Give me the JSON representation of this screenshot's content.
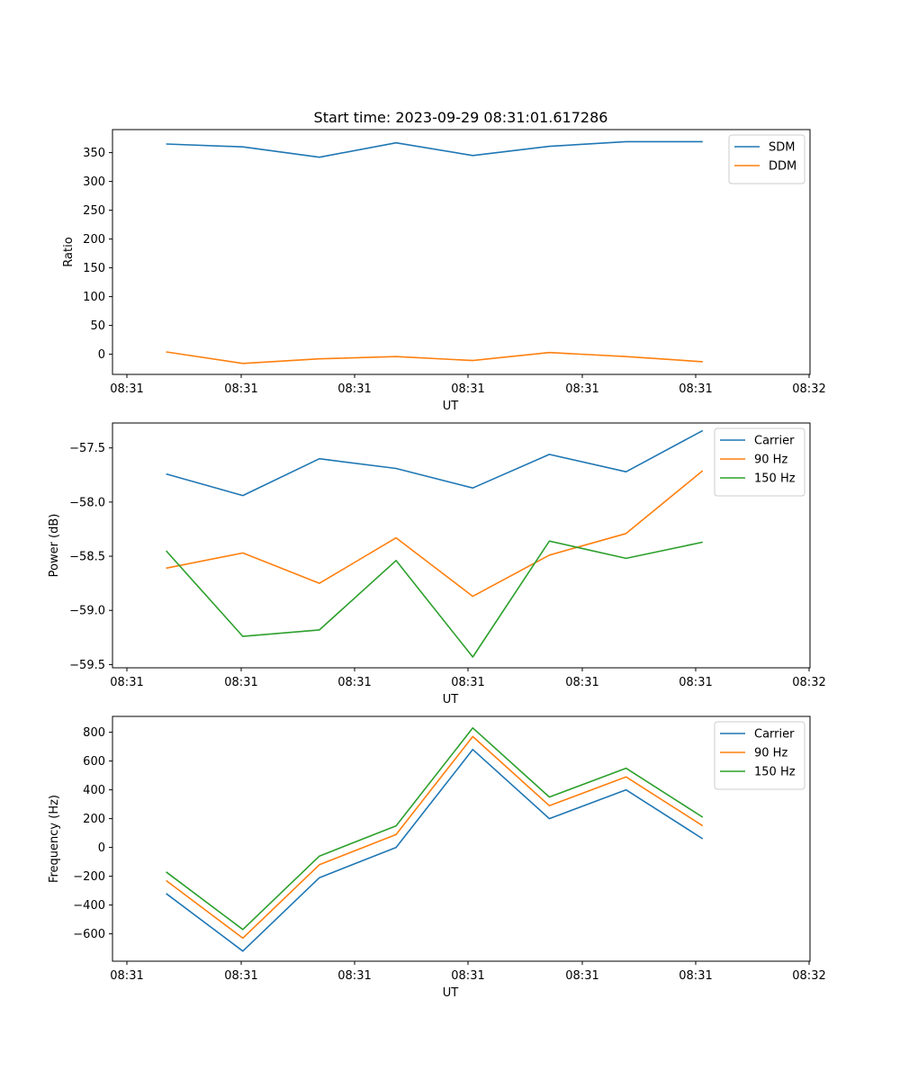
{
  "figure_title": "Start time: 2023-09-29 08:31:01.617286",
  "chart_data": [
    {
      "type": "line",
      "title": "Start time: 2023-09-29 08:31:01.617286",
      "xlabel": "UT",
      "ylabel": "Ratio",
      "x_ticks": [
        "08:31",
        "08:31",
        "08:31",
        "08:31",
        "08:31",
        "08:31",
        "08:31"
      ],
      "x_last_tick": "08:32",
      "x_points": [
        1,
        2,
        3,
        4,
        5,
        6,
        7,
        8
      ],
      "xlim": [
        0.3,
        9.4
      ],
      "ylim": [
        -35,
        390
      ],
      "y_ticks": [
        0,
        50,
        100,
        150,
        200,
        250,
        300,
        350
      ],
      "legend_position": "top-right",
      "series": [
        {
          "name": "SDM",
          "color": "#1f77b4",
          "values": [
            365,
            360,
            342,
            367,
            345,
            361,
            369,
            369
          ]
        },
        {
          "name": "DDM",
          "color": "#ff7f0e",
          "values": [
            4,
            -16,
            -8,
            -4,
            -11,
            3,
            -4,
            -13
          ]
        }
      ]
    },
    {
      "type": "line",
      "title": "",
      "xlabel": "UT",
      "ylabel": "Power (dB)",
      "x_ticks": [
        "08:31",
        "08:31",
        "08:31",
        "08:31",
        "08:31",
        "08:31",
        "08:31"
      ],
      "x_last_tick": "08:32",
      "x_points": [
        1,
        2,
        3,
        4,
        5,
        6,
        7,
        8
      ],
      "xlim": [
        0.3,
        9.4
      ],
      "ylim": [
        -59.53,
        -57.27
      ],
      "y_ticks": [
        -59.5,
        -59.0,
        -58.5,
        -58.0,
        -57.5
      ],
      "y_tick_labels": [
        "−59.5",
        "−59.0",
        "−58.5",
        "−58.0",
        "−57.5"
      ],
      "legend_position": "top-right",
      "series": [
        {
          "name": "Carrier",
          "color": "#1f77b4",
          "values": [
            -57.74,
            -57.94,
            -57.6,
            -57.69,
            -57.87,
            -57.56,
            -57.72,
            -57.34
          ]
        },
        {
          "name": "90 Hz",
          "color": "#ff7f0e",
          "values": [
            -58.61,
            -58.47,
            -58.75,
            -58.33,
            -58.87,
            -58.49,
            -58.29,
            -57.71
          ]
        },
        {
          "name": "150 Hz",
          "color": "#2ca02c",
          "values": [
            -58.45,
            -59.24,
            -59.18,
            -58.54,
            -59.43,
            -58.36,
            -58.52,
            -58.37
          ]
        }
      ]
    },
    {
      "type": "line",
      "title": "",
      "xlabel": "UT",
      "ylabel": "Frequency (Hz)",
      "x_ticks": [
        "08:31",
        "08:31",
        "08:31",
        "08:31",
        "08:31",
        "08:31",
        "08:31"
      ],
      "x_last_tick": "08:32",
      "x_points": [
        1,
        2,
        3,
        4,
        5,
        6,
        7,
        8
      ],
      "xlim": [
        0.3,
        9.4
      ],
      "ylim": [
        -790,
        910
      ],
      "y_ticks": [
        -600,
        -400,
        -200,
        0,
        200,
        400,
        600,
        800
      ],
      "y_tick_labels": [
        "−600",
        "−400",
        "−200",
        "0",
        "200",
        "400",
        "600",
        "800"
      ],
      "legend_position": "top-right",
      "series": [
        {
          "name": "Carrier",
          "color": "#1f77b4",
          "values": [
            -320,
            -720,
            -210,
            0,
            680,
            200,
            400,
            60
          ]
        },
        {
          "name": "90 Hz",
          "color": "#ff7f0e",
          "values": [
            -230,
            -630,
            -120,
            90,
            770,
            290,
            490,
            150
          ]
        },
        {
          "name": "150 Hz",
          "color": "#2ca02c",
          "values": [
            -170,
            -570,
            -60,
            150,
            830,
            350,
            550,
            210
          ]
        }
      ]
    }
  ]
}
